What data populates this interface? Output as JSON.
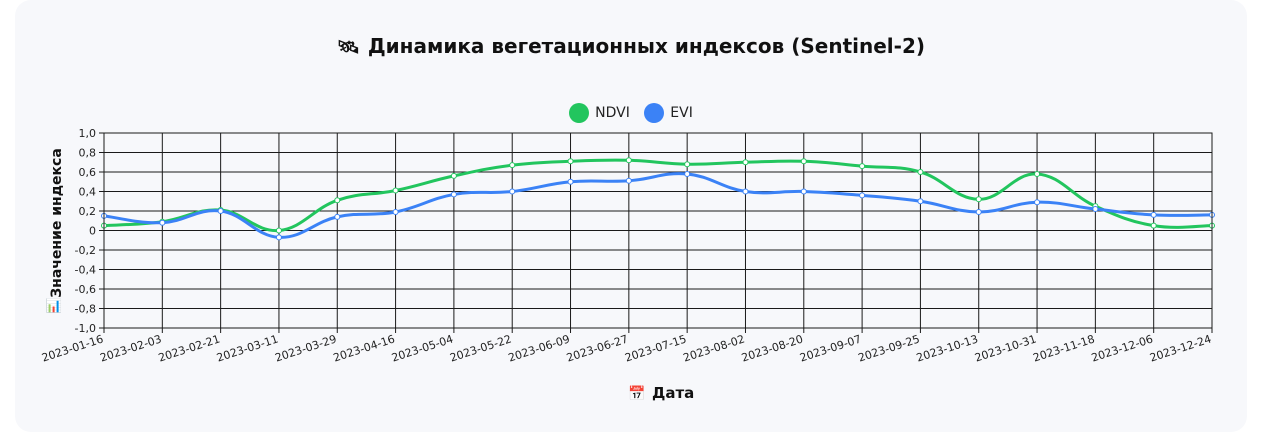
{
  "title": {
    "icon": "satellite-icon",
    "text": "Динамика вегетационных индексов (Sentinel-2)"
  },
  "chart_data": {
    "type": "line",
    "title": "Динамика вегетационных индексов (Sentinel-2)",
    "xlabel": "Дата",
    "ylabel": "Значение индекса",
    "xlabel_icon": "calendar-icon",
    "ylabel_icon": "chart-icon",
    "x": [
      "2023-01-16",
      "2023-02-03",
      "2023-02-21",
      "2023-03-11",
      "2023-03-29",
      "2023-04-16",
      "2023-05-04",
      "2023-05-22",
      "2023-06-09",
      "2023-06-27",
      "2023-07-15",
      "2023-08-02",
      "2023-08-20",
      "2023-09-07",
      "2023-09-25",
      "2023-10-13",
      "2023-10-31",
      "2023-11-18",
      "2023-12-06",
      "2023-12-24"
    ],
    "ylim": [
      -1.0,
      1.0
    ],
    "yticks": [
      "1,0",
      "0,8",
      "0,6",
      "0,4",
      "0,2",
      "0",
      "-0,2",
      "-0,4",
      "-0,6",
      "-0,8",
      "-1,0"
    ],
    "grid": true,
    "legend_position": "top-center",
    "series": [
      {
        "name": "NDVI",
        "color": "#22c55e",
        "values": [
          0.05,
          0.09,
          0.21,
          0.0,
          0.31,
          0.41,
          0.56,
          0.67,
          0.71,
          0.72,
          0.68,
          0.7,
          0.71,
          0.66,
          0.6,
          0.32,
          0.58,
          0.25,
          0.05,
          0.05
        ]
      },
      {
        "name": "EVI",
        "color": "#3b82f6",
        "values": [
          0.15,
          0.08,
          0.2,
          -0.07,
          0.14,
          0.19,
          0.37,
          0.4,
          0.5,
          0.51,
          0.58,
          0.4,
          0.4,
          0.36,
          0.3,
          0.19,
          0.29,
          0.22,
          0.16,
          0.16
        ]
      }
    ]
  }
}
